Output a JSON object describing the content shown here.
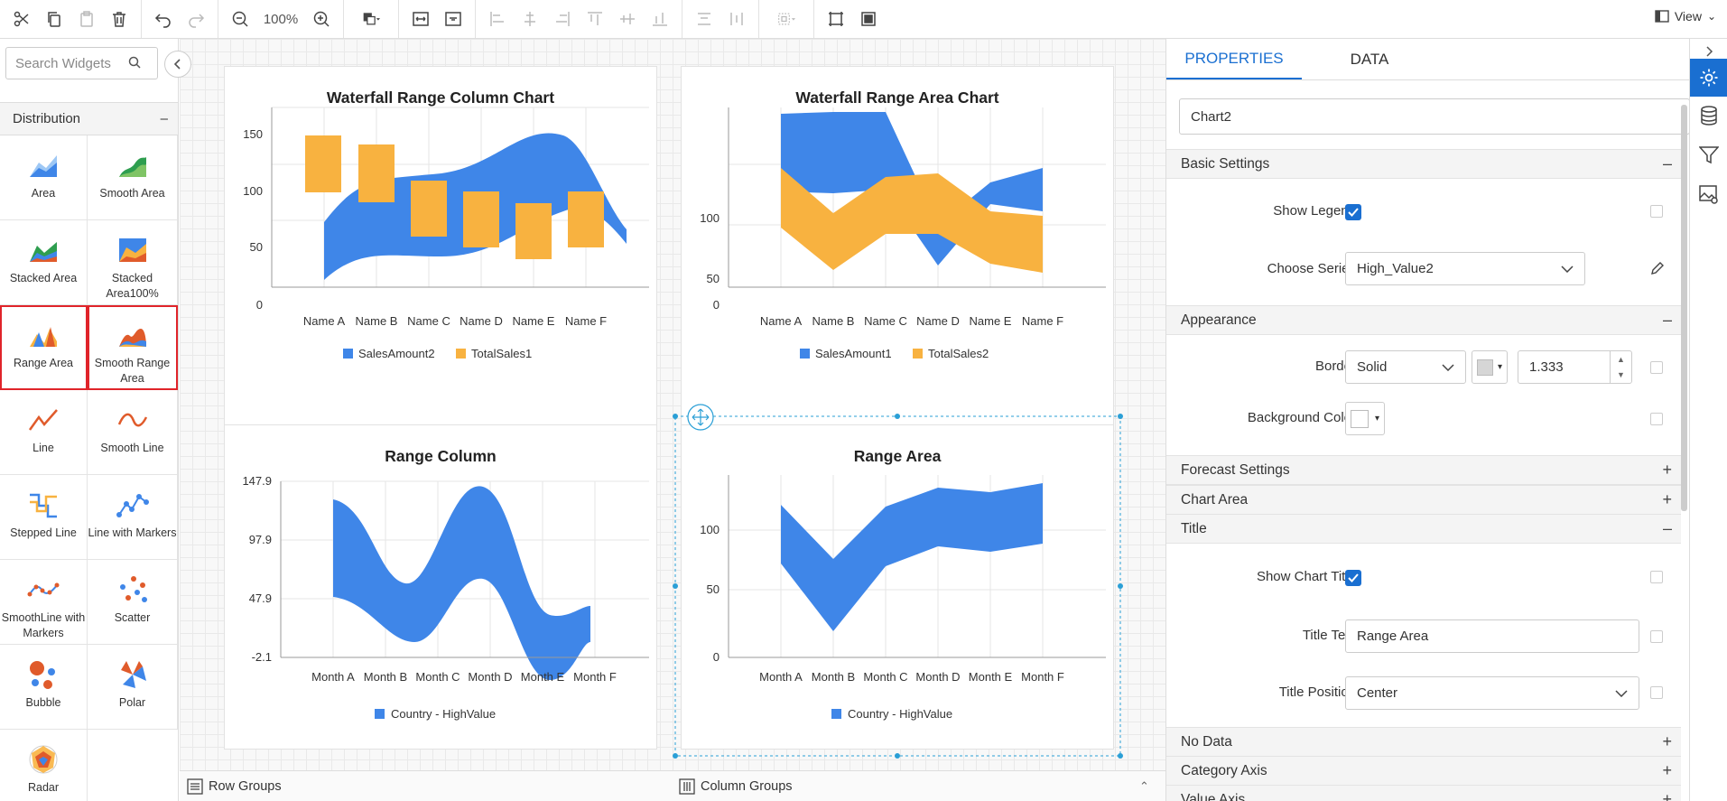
{
  "toolbar": {
    "zoom": "100%",
    "view_label": "View"
  },
  "left_panel": {
    "search_placeholder": "Search Widgets",
    "category": "Distribution",
    "widgets": [
      {
        "label": "Area",
        "icon": "area-chart-icon"
      },
      {
        "label": "Smooth Area",
        "icon": "smooth-area-chart-icon"
      },
      {
        "label": "Stacked Area",
        "icon": "stacked-area-chart-icon"
      },
      {
        "label": "Stacked Area100%",
        "icon": "stacked-area100-chart-icon"
      },
      {
        "label": "Range Area",
        "icon": "range-area-chart-icon"
      },
      {
        "label": "Smooth Range Area",
        "icon": "smooth-range-area-chart-icon"
      },
      {
        "label": "Line",
        "icon": "line-chart-icon"
      },
      {
        "label": "Smooth Line",
        "icon": "smooth-line-chart-icon"
      },
      {
        "label": "Stepped Line",
        "icon": "stepped-line-chart-icon"
      },
      {
        "label": "Line with Markers",
        "icon": "line-markers-chart-icon"
      },
      {
        "label": "SmoothLine with Markers",
        "icon": "smoothline-markers-chart-icon"
      },
      {
        "label": "Scatter",
        "icon": "scatter-chart-icon"
      },
      {
        "label": "Bubble",
        "icon": "bubble-chart-icon"
      },
      {
        "label": "Polar",
        "icon": "polar-chart-icon"
      },
      {
        "label": "Radar",
        "icon": "radar-chart-icon"
      }
    ]
  },
  "canvas": {
    "charts": [
      {
        "title": "Waterfall Range Column Chart",
        "legend": [
          "SalesAmount2",
          "TotalSales1"
        ],
        "yticks": [
          "150",
          "100",
          "50",
          "0"
        ],
        "xticks": [
          "Name A",
          "Name B",
          "Name C",
          "Name D",
          "Name E",
          "Name F"
        ]
      },
      {
        "title": "Waterfall Range Area Chart",
        "legend": [
          "SalesAmount1",
          "TotalSales2"
        ],
        "yticks": [
          "100",
          "50",
          "0"
        ],
        "xticks": [
          "Name A",
          "Name B",
          "Name C",
          "Name D",
          "Name E",
          "Name F"
        ]
      },
      {
        "title": "Range Column",
        "legend": [
          "Country - HighValue"
        ],
        "yticks": [
          "147.9",
          "97.9",
          "47.9",
          "-2.1"
        ],
        "xticks": [
          "Month A",
          "Month B",
          "Month C",
          "Month D",
          "Month E",
          "Month F"
        ]
      },
      {
        "title": "Range Area",
        "legend": [
          "Country - HighValue"
        ],
        "yticks": [
          "100",
          "50",
          "0"
        ],
        "xticks": [
          "Month A",
          "Month B",
          "Month C",
          "Month D",
          "Month E",
          "Month F"
        ]
      }
    ]
  },
  "bottom_bar": {
    "row_groups": "Row Groups",
    "column_groups": "Column Groups"
  },
  "properties": {
    "tabs": [
      "PROPERTIES",
      "DATA"
    ],
    "chart_name": "Chart2",
    "sections": {
      "basic": "Basic Settings",
      "appearance": "Appearance",
      "forecast": "Forecast Settings",
      "chart_area": "Chart Area",
      "title": "Title",
      "no_data": "No Data",
      "category_axis": "Category Axis",
      "value_axis": "Value Axis"
    },
    "show_legend_label": "Show Legend",
    "choose_series_label": "Choose Series",
    "choose_series_value": "High_Value2",
    "border_label": "Border",
    "border_style": "Solid",
    "border_width": "1.333",
    "bg_color_label": "Background Color",
    "show_chart_title_label": "Show Chart Title",
    "title_text_label": "Title Text",
    "title_text_value": "Range Area",
    "title_position_label": "Title Position",
    "title_position_value": "Center"
  },
  "colors": {
    "accent": "#1a6fd1",
    "series_blue": "#3f86e8",
    "series_orange": "#f8b240"
  }
}
